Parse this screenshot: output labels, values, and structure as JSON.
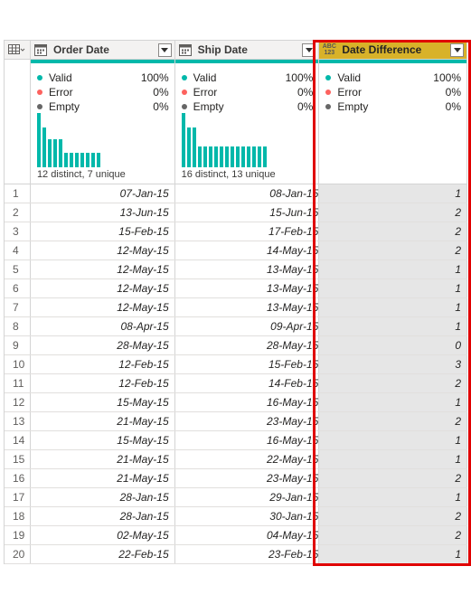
{
  "columns": {
    "order": {
      "label": "Order Date",
      "type_icon": "calendar-icon"
    },
    "ship": {
      "label": "Ship Date",
      "type_icon": "calendar-icon"
    },
    "diff": {
      "label": "Date Difference",
      "type_icon": "abc123-icon",
      "type_text_top": "ABC",
      "type_text_bottom": "123"
    }
  },
  "profile": {
    "labels": {
      "valid": "Valid",
      "error": "Error",
      "empty": "Empty"
    },
    "colors": {
      "valid": "#01b8aa",
      "error": "#fd625e",
      "empty": "#666666",
      "accent": "#d8b229"
    },
    "order": {
      "valid": "100%",
      "error": "0%",
      "empty": "0%",
      "distinct": "12 distinct, 7 unique",
      "histogram": [
        1.0,
        0.73,
        0.52,
        0.52,
        0.52,
        0.27,
        0.27,
        0.27,
        0.27,
        0.27,
        0.27,
        0.27
      ]
    },
    "ship": {
      "valid": "100%",
      "error": "0%",
      "empty": "0%",
      "distinct": "16 distinct, 13 unique",
      "histogram": [
        1.0,
        0.73,
        0.73,
        0.38,
        0.38,
        0.38,
        0.38,
        0.38,
        0.38,
        0.38,
        0.38,
        0.38,
        0.38,
        0.38,
        0.38,
        0.38
      ]
    },
    "diff": {
      "valid": "100%",
      "error": "0%",
      "empty": "0%"
    }
  },
  "rows": [
    {
      "n": "1",
      "order": "07-Jan-15",
      "ship": "08-Jan-15",
      "diff": "1"
    },
    {
      "n": "2",
      "order": "13-Jun-15",
      "ship": "15-Jun-15",
      "diff": "2"
    },
    {
      "n": "3",
      "order": "15-Feb-15",
      "ship": "17-Feb-15",
      "diff": "2"
    },
    {
      "n": "4",
      "order": "12-May-15",
      "ship": "14-May-15",
      "diff": "2"
    },
    {
      "n": "5",
      "order": "12-May-15",
      "ship": "13-May-15",
      "diff": "1"
    },
    {
      "n": "6",
      "order": "12-May-15",
      "ship": "13-May-15",
      "diff": "1"
    },
    {
      "n": "7",
      "order": "12-May-15",
      "ship": "13-May-15",
      "diff": "1"
    },
    {
      "n": "8",
      "order": "08-Apr-15",
      "ship": "09-Apr-15",
      "diff": "1"
    },
    {
      "n": "9",
      "order": "28-May-15",
      "ship": "28-May-15",
      "diff": "0"
    },
    {
      "n": "10",
      "order": "12-Feb-15",
      "ship": "15-Feb-15",
      "diff": "3"
    },
    {
      "n": "11",
      "order": "12-Feb-15",
      "ship": "14-Feb-15",
      "diff": "2"
    },
    {
      "n": "12",
      "order": "15-May-15",
      "ship": "16-May-15",
      "diff": "1"
    },
    {
      "n": "13",
      "order": "21-May-15",
      "ship": "23-May-15",
      "diff": "2"
    },
    {
      "n": "14",
      "order": "15-May-15",
      "ship": "16-May-15",
      "diff": "1"
    },
    {
      "n": "15",
      "order": "21-May-15",
      "ship": "22-May-15",
      "diff": "1"
    },
    {
      "n": "16",
      "order": "21-May-15",
      "ship": "23-May-15",
      "diff": "2"
    },
    {
      "n": "17",
      "order": "28-Jan-15",
      "ship": "29-Jan-15",
      "diff": "1"
    },
    {
      "n": "18",
      "order": "28-Jan-15",
      "ship": "30-Jan-15",
      "diff": "2"
    },
    {
      "n": "19",
      "order": "02-May-15",
      "ship": "04-May-15",
      "diff": "2"
    },
    {
      "n": "20",
      "order": "22-Feb-15",
      "ship": "23-Feb-15",
      "diff": "1"
    }
  ]
}
